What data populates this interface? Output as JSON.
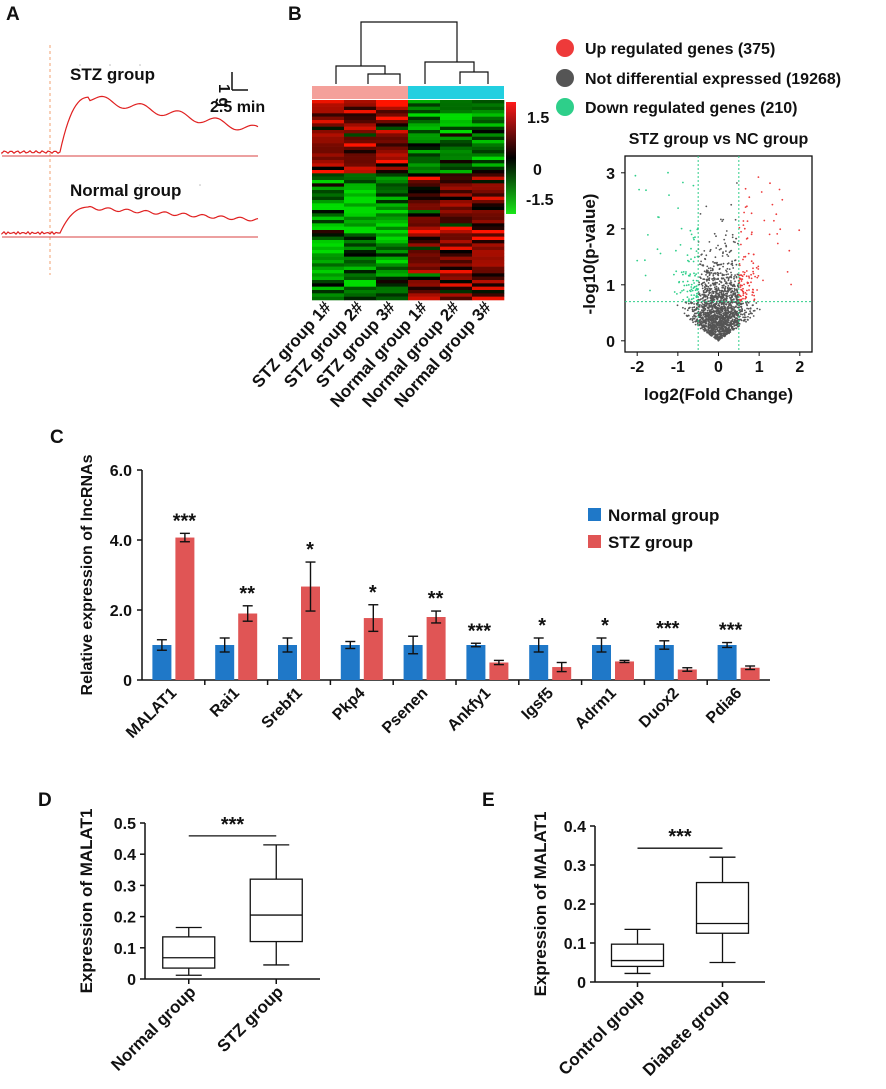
{
  "panels": {
    "A": "A",
    "B": "B",
    "C": "C",
    "D": "D",
    "E": "E"
  },
  "panel_a": {
    "top_label": "STZ group",
    "bottom_label": "Normal group",
    "scale_y": "1 g",
    "scale_x": "2.5 min"
  },
  "heatmap": {
    "colorbar_ticks": [
      "1.5",
      "0",
      "-1.5"
    ],
    "samples": [
      "STZ group 1#",
      "STZ group 2#",
      "STZ group 3#",
      "Normal group 1#",
      "Normal group 2#",
      "Normal group 3#"
    ],
    "group_colors": [
      "#f4a09a",
      "#22cfe0"
    ],
    "scale_colors": {
      "high": "#ff1a1a",
      "mid": "#000000",
      "low": "#19e619"
    }
  },
  "legend_b": [
    {
      "label": "Up regulated genes (375)",
      "color": "#ee3a3a"
    },
    {
      "label": "Not differential expressed (19268)",
      "color": "#555555"
    },
    {
      "label": "Down regulated genes (210)",
      "color": "#2ecf8a"
    }
  ],
  "chart_data": [
    {
      "type": "scatter",
      "title": "STZ group vs NC group",
      "xlabel": "log2(Fold Change)",
      "ylabel": "-log10(p-value)",
      "xticks": [
        "-2",
        "-1",
        "0",
        "1",
        "2"
      ],
      "yticks": [
        "0",
        "1",
        "2",
        "3"
      ],
      "xlim": [
        -2.3,
        2.3
      ],
      "ylim": [
        -0.2,
        3.3
      ],
      "thresholds": {
        "fold_change_x": [
          -0.5,
          0.5
        ],
        "pvalue_y": 0.7
      },
      "counts": {
        "up": 375,
        "not_differential": 19268,
        "down": 210
      }
    },
    {
      "type": "bar",
      "ylabel": "Relative expression of lncRNAs",
      "ylim": [
        0,
        6.0
      ],
      "yticks": [
        "0",
        "2.0",
        "4.0",
        "6.0"
      ],
      "categories": [
        "MALAT1",
        "Rai1",
        "Srebf1",
        "Pkp4",
        "Psenen",
        "Ankfy1",
        "Igsf5",
        "Adrm1",
        "Duox2",
        "Pdia6"
      ],
      "series": [
        {
          "name": "Normal group",
          "color": "#1f78c8",
          "values": [
            1.0,
            1.0,
            1.0,
            1.0,
            1.0,
            1.0,
            1.0,
            1.0,
            1.0,
            1.0
          ],
          "errors": [
            0.15,
            0.2,
            0.2,
            0.1,
            0.25,
            0.05,
            0.2,
            0.2,
            0.12,
            0.07
          ]
        },
        {
          "name": "STZ group",
          "color": "#e05555",
          "values": [
            4.07,
            1.9,
            2.67,
            1.77,
            1.8,
            0.5,
            0.37,
            0.53,
            0.3,
            0.35
          ],
          "errors": [
            0.12,
            0.22,
            0.7,
            0.38,
            0.17,
            0.06,
            0.13,
            0.03,
            0.05,
            0.05
          ]
        }
      ],
      "significance": [
        "***",
        "**",
        "*",
        "*",
        "**",
        "***",
        "*",
        "*",
        "***",
        "***"
      ]
    },
    {
      "type": "box",
      "ylabel": "Expression of  MALAT1",
      "ylim": [
        0,
        0.5
      ],
      "yticks": [
        "0",
        "0.1",
        "0.2",
        "0.3",
        "0.4",
        "0.5"
      ],
      "categories": [
        "Normal group",
        "STZ group"
      ],
      "boxes": [
        {
          "min": 0.012,
          "q1": 0.035,
          "median": 0.068,
          "q3": 0.135,
          "max": 0.165
        },
        {
          "min": 0.045,
          "q1": 0.12,
          "median": 0.205,
          "q3": 0.32,
          "max": 0.43
        }
      ],
      "significance": "***"
    },
    {
      "type": "box",
      "ylabel": "Expression of  MALAT1",
      "ylim": [
        0,
        0.4
      ],
      "yticks": [
        "0",
        "0.1",
        "0.2",
        "0.3",
        "0.4"
      ],
      "categories": [
        "Control group",
        "Diabete group"
      ],
      "boxes": [
        {
          "min": 0.022,
          "q1": 0.04,
          "median": 0.055,
          "q3": 0.097,
          "max": 0.135
        },
        {
          "min": 0.05,
          "q1": 0.125,
          "median": 0.15,
          "q3": 0.255,
          "max": 0.32
        }
      ],
      "significance": "***"
    }
  ]
}
